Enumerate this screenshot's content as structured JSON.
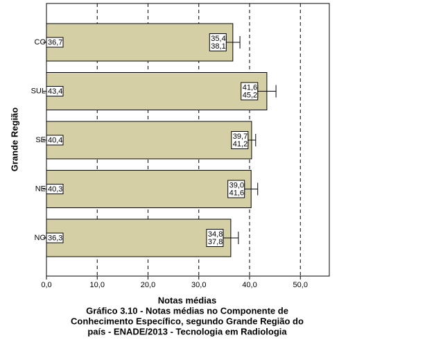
{
  "chart_data": {
    "type": "hbar",
    "title": [
      "Gráfico 3.10 - Notas médias no Componente de",
      "Conhecimento Específico, segundo Grande Região do",
      "país - ENADE/2013 - Tecnologia em Radiologia"
    ],
    "x_label": "Notas médias",
    "y_label": "Grande Região",
    "categories": [
      "CO",
      "SUL",
      "SE",
      "NE",
      "NO"
    ],
    "values": [
      36.7,
      43.4,
      40.4,
      40.3,
      36.3
    ],
    "value_labels": [
      "36,7",
      "43,4",
      "40,4",
      "40,3",
      "36,3"
    ],
    "ci_low": [
      35.4,
      41.6,
      39.7,
      39.0,
      34.8
    ],
    "ci_low_labels": [
      "35,4",
      "41,6",
      "39,7",
      "39,0",
      "34,8"
    ],
    "ci_high": [
      38.1,
      45.2,
      41.2,
      41.6,
      37.8
    ],
    "ci_high_labels": [
      "38,1",
      "45,2",
      "41,2",
      "41,6",
      "37,8"
    ],
    "color": "#d4cfa4",
    "xlim": [
      0,
      55.7
    ],
    "xticks": [
      {
        "value": 0,
        "label": "0,0"
      },
      {
        "value": 10,
        "label": "10,0"
      },
      {
        "value": 20,
        "label": "20,0"
      },
      {
        "value": 30,
        "label": "30,0"
      },
      {
        "value": 40,
        "label": "40,0"
      },
      {
        "value": 50,
        "label": "50,0"
      }
    ],
    "grid": true
  }
}
